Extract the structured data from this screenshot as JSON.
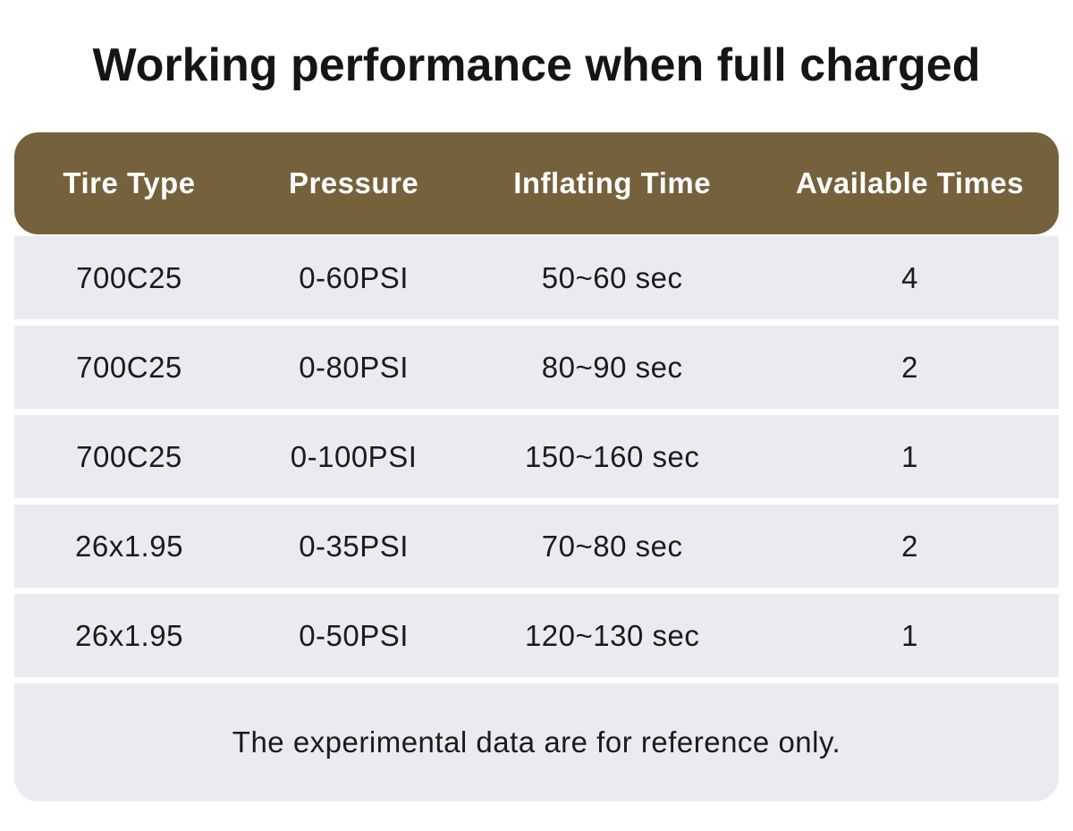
{
  "page": {
    "title": "Working performance when full charged",
    "footnote": "The experimental data are for reference only."
  },
  "table": {
    "columns": [
      "Tire Type",
      "Pressure",
      "Inflating Time",
      "Available Times"
    ],
    "rows": [
      [
        "700C25",
        "0-60PSI",
        "50~60 sec",
        "4"
      ],
      [
        "700C25",
        "0-80PSI",
        "80~90 sec",
        "2"
      ],
      [
        "700C25",
        "0-100PSI",
        "150~160 sec",
        "1"
      ],
      [
        "26x1.95",
        "0-35PSI",
        "70~80 sec",
        "2"
      ],
      [
        "26x1.95",
        "0-50PSI",
        "120~130 sec",
        "1"
      ]
    ]
  },
  "chart_data": {
    "type": "table",
    "title": "Working performance when full charged",
    "columns": [
      "Tire Type",
      "Pressure",
      "Inflating Time",
      "Available Times"
    ],
    "rows": [
      {
        "tire_type": "700C25",
        "pressure": "0-60PSI",
        "inflating_time": "50~60 sec",
        "available_times": 4
      },
      {
        "tire_type": "700C25",
        "pressure": "0-80PSI",
        "inflating_time": "80~90 sec",
        "available_times": 2
      },
      {
        "tire_type": "700C25",
        "pressure": "0-100PSI",
        "inflating_time": "150~160 sec",
        "available_times": 1
      },
      {
        "tire_type": "26x1.95",
        "pressure": "0-35PSI",
        "inflating_time": "70~80 sec",
        "available_times": 2
      },
      {
        "tire_type": "26x1.95",
        "pressure": "0-50PSI",
        "inflating_time": "120~130 sec",
        "available_times": 1
      }
    ],
    "note": "The experimental data are for reference only."
  },
  "colors": {
    "header_bg": "#75613B",
    "header_text": "#FFFFFF",
    "row_bg": "#E9EBF0",
    "page_bg": "#FFFFFF",
    "cell_text": "#1B1B1B"
  }
}
